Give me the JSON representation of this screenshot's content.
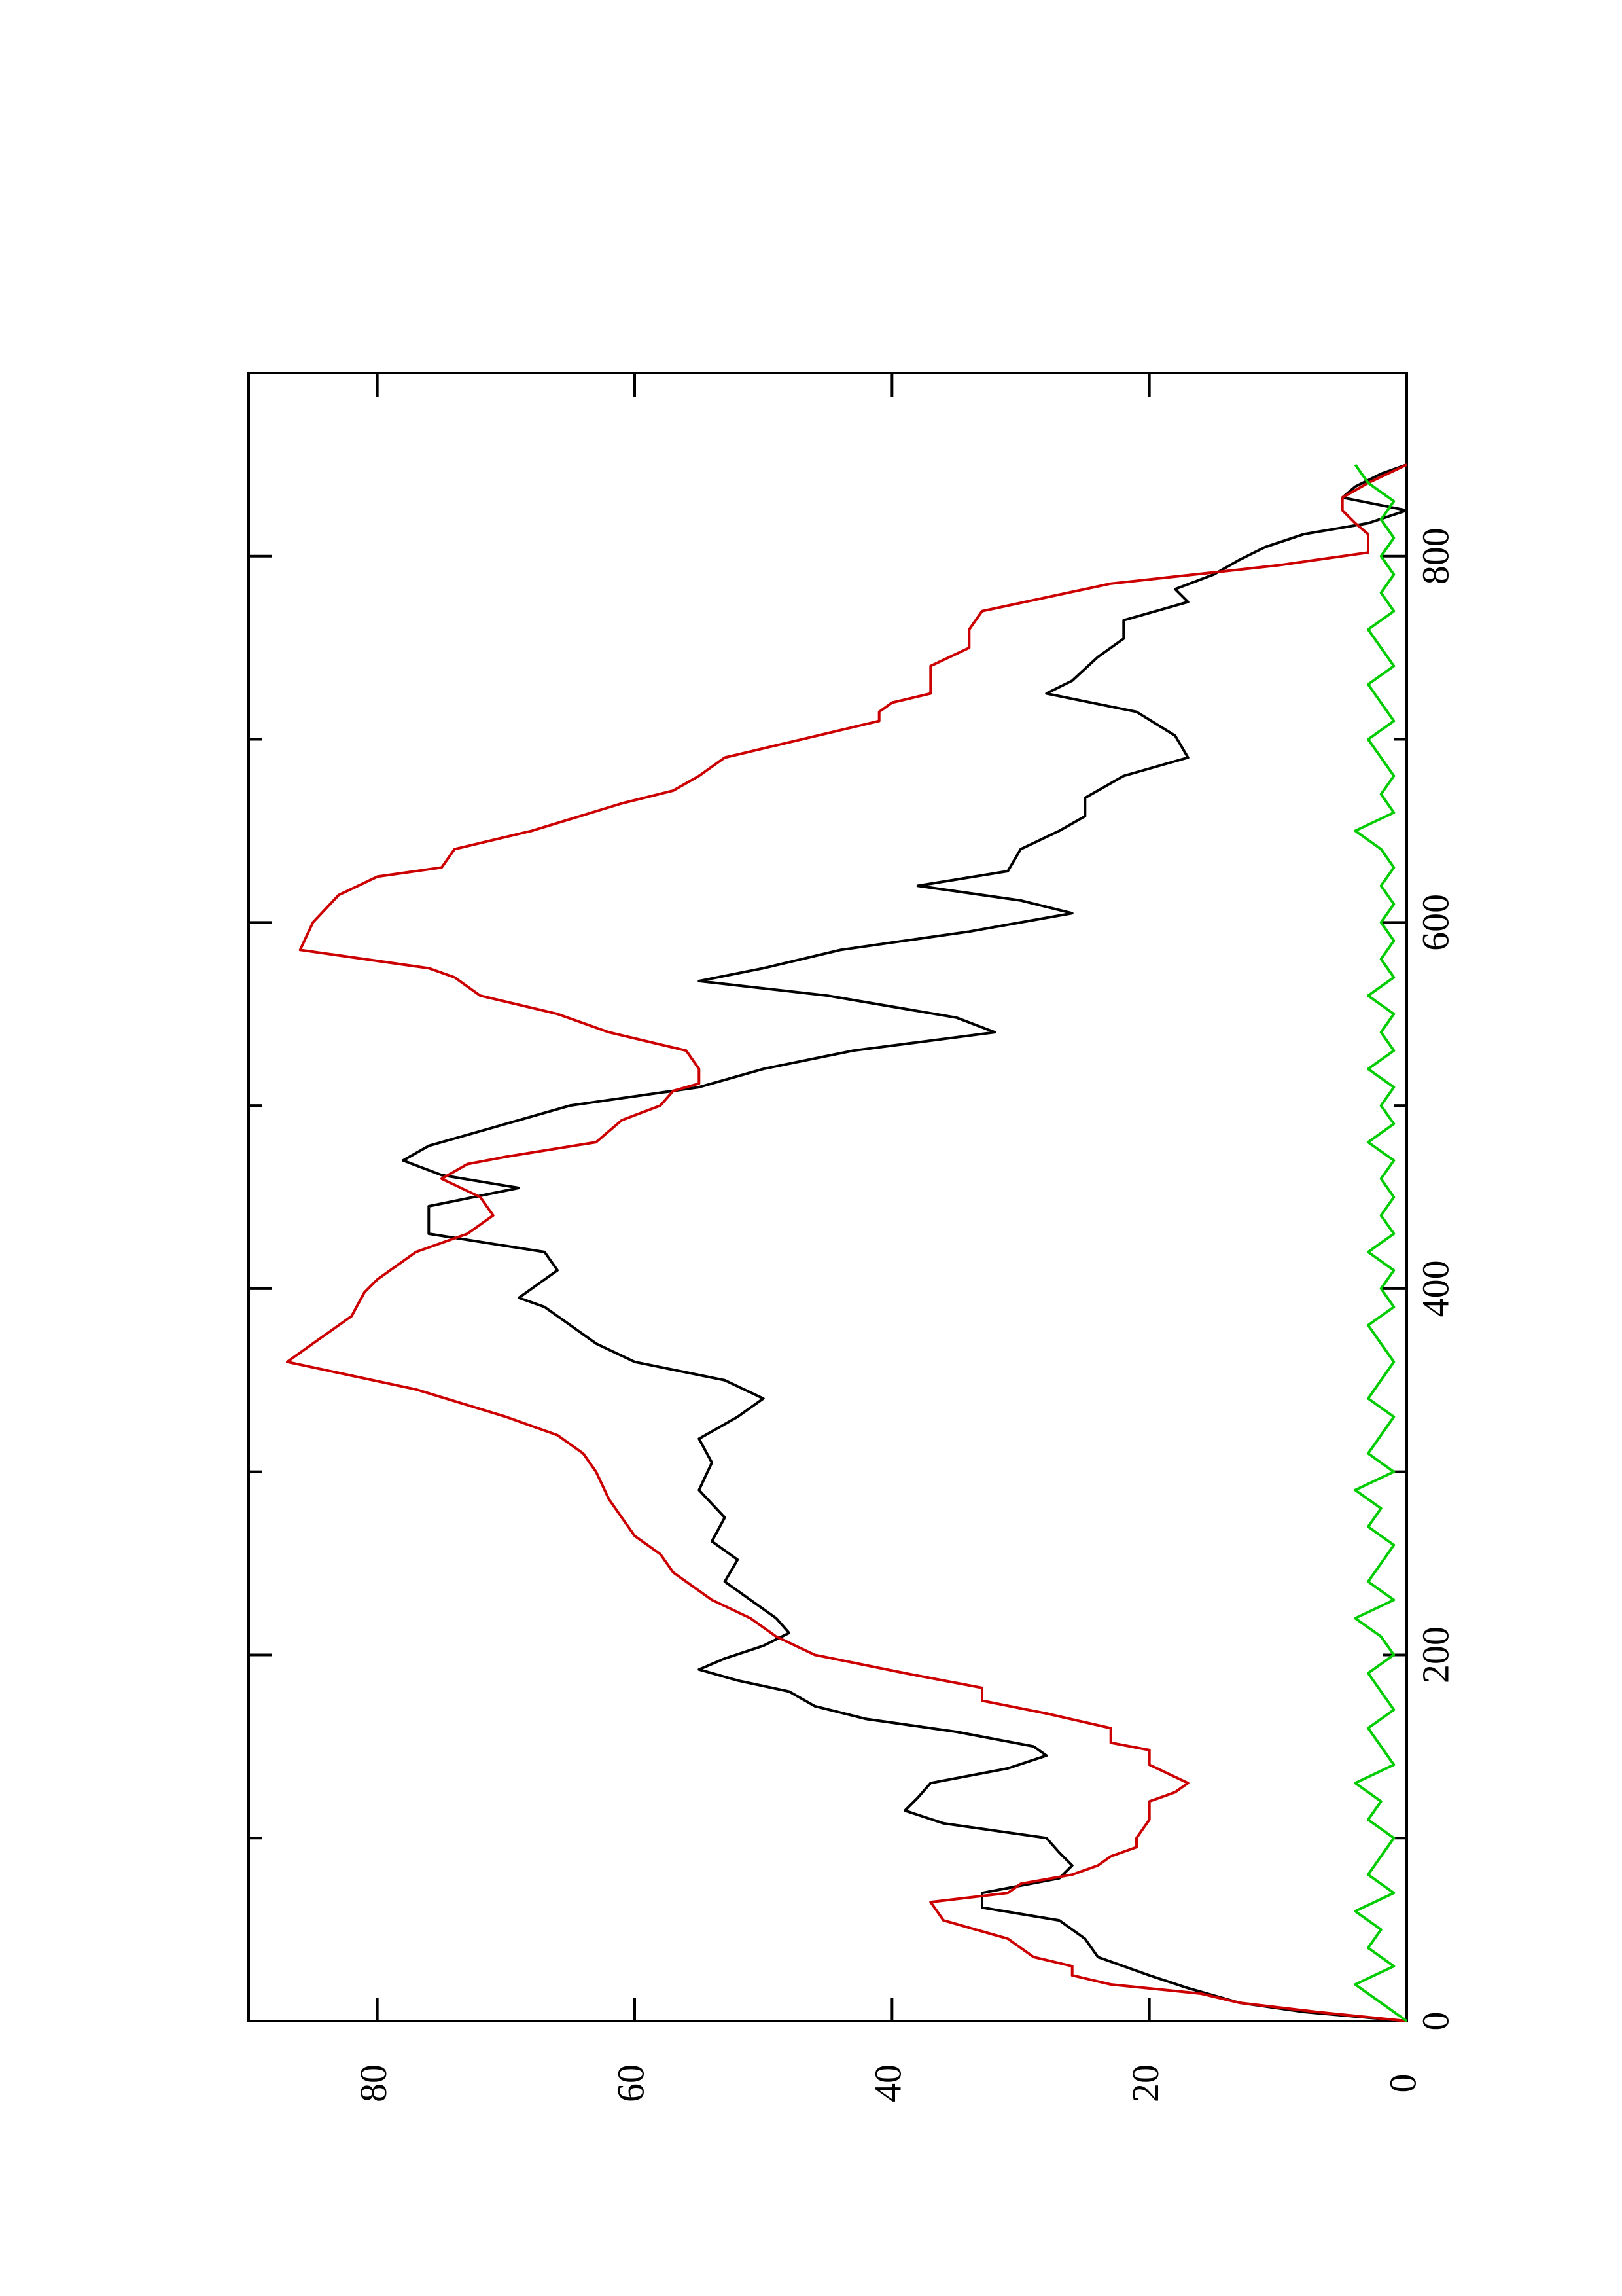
{
  "chart_data": {
    "type": "line",
    "title": "",
    "xlabel": "",
    "ylabel": "",
    "orientation": "rotated-90-ccw",
    "xlim": [
      0,
      900
    ],
    "ylim": [
      0,
      90
    ],
    "x_ticks": [
      0,
      200,
      400,
      600,
      800
    ],
    "x_minor_ticks": [
      100,
      300,
      500,
      700
    ],
    "y_ticks": [
      0,
      20,
      40,
      60,
      80
    ],
    "x_tick_labels": [
      "0",
      "200",
      "400",
      "600",
      "800"
    ],
    "y_tick_labels": [
      "0",
      "20",
      "40",
      "60",
      "80"
    ],
    "grid": false,
    "legend": "none",
    "series": [
      {
        "color": "#000000",
        "x": [
          0,
          5,
          10,
          18,
          25,
          35,
          45,
          55,
          62,
          70,
          78,
          85,
          92,
          100,
          108,
          115,
          122,
          130,
          138,
          145,
          150,
          158,
          165,
          172,
          180,
          186,
          192,
          198,
          205,
          212,
          220,
          230,
          240,
          252,
          262,
          275,
          290,
          305,
          318,
          330,
          340,
          350,
          360,
          370,
          380,
          390,
          395,
          400,
          410,
          420,
          430,
          445,
          455,
          462,
          470,
          478,
          490,
          500,
          510,
          520,
          530,
          540,
          548,
          560,
          568,
          575,
          585,
          595,
          605,
          612,
          620,
          628,
          640,
          650,
          658,
          668,
          680,
          690,
          702,
          715,
          725,
          732,
          745,
          755,
          765,
          775,
          782,
          790,
          798,
          805,
          812,
          818,
          825,
          832,
          838,
          845,
          850
        ],
        "y": [
          0,
          8,
          13,
          17,
          20,
          24,
          25,
          27,
          33,
          33,
          27,
          26,
          27,
          28,
          36,
          39,
          38,
          37,
          31,
          28,
          29,
          35,
          42,
          46,
          48,
          52,
          55,
          53,
          50,
          48,
          49,
          51,
          53,
          52,
          54,
          53,
          55,
          54,
          55,
          52,
          50,
          53,
          60,
          63,
          65,
          67,
          69,
          68,
          66,
          67,
          76,
          76,
          69,
          75,
          78,
          76,
          70,
          65,
          55,
          50,
          43,
          32,
          35,
          45,
          55,
          50,
          44,
          34,
          26,
          30,
          38,
          31,
          30,
          27,
          25,
          25,
          22,
          17,
          18,
          21,
          28,
          26,
          24,
          22,
          22,
          17,
          18,
          15,
          13,
          11,
          8,
          3,
          0,
          5,
          4,
          2,
          0
        ]
      },
      {
        "color": "#cc0000",
        "x": [
          0,
          5,
          10,
          15,
          20,
          25,
          30,
          35,
          45,
          55,
          65,
          70,
          75,
          80,
          85,
          90,
          95,
          100,
          110,
          120,
          125,
          130,
          140,
          148,
          152,
          160,
          168,
          175,
          182,
          190,
          200,
          210,
          220,
          230,
          245,
          255,
          265,
          275,
          285,
          300,
          310,
          320,
          330,
          345,
          360,
          375,
          385,
          398,
          405,
          410,
          420,
          430,
          440,
          450,
          460,
          468,
          472,
          480,
          492,
          500,
          508,
          512,
          520,
          530,
          540,
          550,
          560,
          570,
          575,
          585,
          600,
          615,
          625,
          630,
          640,
          650,
          665,
          672,
          680,
          690,
          695,
          700,
          710,
          715,
          720,
          725,
          740,
          750,
          760,
          770,
          785,
          795,
          802,
          812,
          818,
          825,
          832,
          840,
          850
        ],
        "y": [
          0,
          7,
          13,
          16,
          23,
          26,
          26,
          29,
          31,
          36,
          37,
          31,
          30,
          26,
          24,
          23,
          21,
          21,
          20,
          20,
          18,
          17,
          20,
          20,
          23,
          23,
          28,
          33,
          33,
          39,
          46,
          49,
          51,
          54,
          57,
          58,
          60,
          61,
          62,
          63,
          64,
          66,
          70,
          77,
          87,
          84,
          82,
          81,
          80,
          79,
          77,
          73,
          71,
          72,
          75,
          73,
          70,
          63,
          61,
          58,
          57,
          55,
          55,
          56,
          62,
          66,
          72,
          74,
          76,
          86,
          85,
          83,
          80,
          75,
          74,
          68,
          61,
          57,
          55,
          53,
          50,
          47,
          41,
          41,
          40,
          37,
          37,
          34,
          34,
          33,
          23,
          10,
          3,
          3,
          4,
          5,
          5,
          3,
          0
        ]
      },
      {
        "color": "#00cc00",
        "x": [
          0,
          10,
          20,
          30,
          40,
          50,
          60,
          70,
          80,
          90,
          100,
          110,
          120,
          130,
          140,
          150,
          160,
          170,
          180,
          190,
          200,
          210,
          220,
          230,
          240,
          250,
          260,
          270,
          280,
          290,
          300,
          310,
          320,
          330,
          340,
          350,
          360,
          370,
          380,
          390,
          400,
          410,
          420,
          430,
          440,
          450,
          460,
          470,
          480,
          490,
          500,
          510,
          520,
          530,
          540,
          550,
          560,
          570,
          580,
          590,
          600,
          610,
          620,
          630,
          640,
          650,
          660,
          670,
          680,
          690,
          700,
          710,
          720,
          730,
          740,
          750,
          760,
          770,
          780,
          790,
          800,
          810,
          820,
          830,
          840,
          850
        ],
        "y": [
          0,
          2,
          4,
          1,
          3,
          2,
          4,
          1,
          3,
          2,
          1,
          3,
          2,
          4,
          1,
          2,
          3,
          1,
          2,
          3,
          1,
          2,
          4,
          1,
          3,
          2,
          1,
          3,
          2,
          4,
          1,
          3,
          2,
          1,
          3,
          2,
          1,
          2,
          3,
          1,
          2,
          1,
          3,
          1,
          2,
          1,
          2,
          1,
          3,
          1,
          2,
          1,
          3,
          1,
          2,
          1,
          3,
          1,
          2,
          1,
          2,
          1,
          2,
          1,
          2,
          4,
          1,
          2,
          1,
          2,
          3,
          1,
          2,
          3,
          1,
          2,
          3,
          1,
          2,
          1,
          2,
          1,
          2,
          1,
          3,
          4
        ]
      }
    ]
  }
}
